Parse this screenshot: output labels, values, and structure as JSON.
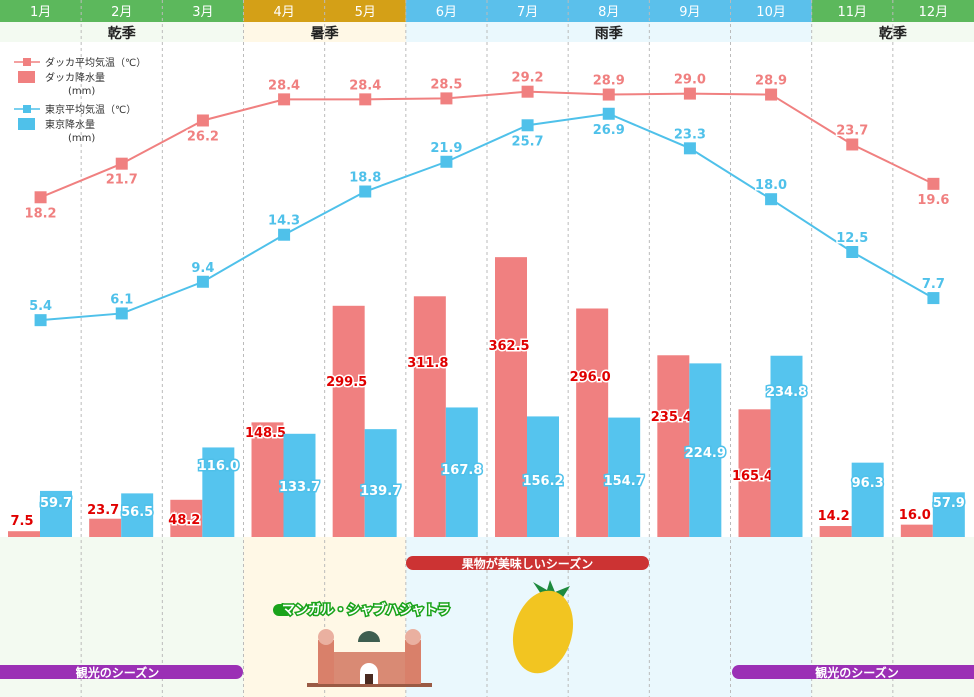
{
  "chart_data": {
    "type": "bar+line",
    "categories": [
      "1月",
      "2月",
      "3月",
      "4月",
      "5月",
      "6月",
      "7月",
      "8月",
      "9月",
      "10月",
      "11月",
      "12月"
    ],
    "seasons": [
      {
        "label": "乾季",
        "months": [
          1,
          2,
          3
        ],
        "color": "#5cb85c",
        "bg": "#f3faf1"
      },
      {
        "label": "暑季",
        "months": [
          4,
          5
        ],
        "color": "#d4a017",
        "bg": "#fff8e6"
      },
      {
        "label": "雨季",
        "months": [
          6,
          7,
          8,
          9,
          10
        ],
        "color": "#5bc0eb",
        "bg": "#eaf8fd"
      },
      {
        "label": "乾季",
        "months": [
          11,
          12
        ],
        "color": "#5cb85c",
        "bg": "#f3faf1"
      }
    ],
    "series": [
      {
        "name": "ダッカ平均気温（℃）",
        "type": "line",
        "color": "#f08080",
        "values": [
          18.2,
          21.7,
          26.2,
          28.4,
          28.4,
          28.5,
          29.2,
          28.9,
          29.0,
          28.9,
          23.7,
          19.6
        ]
      },
      {
        "name": "東京平均気温（℃）",
        "type": "line",
        "color": "#4fc1ea",
        "values": [
          5.4,
          6.1,
          9.4,
          14.3,
          18.8,
          21.9,
          25.7,
          26.9,
          23.3,
          18.0,
          12.5,
          7.7
        ]
      },
      {
        "name": "ダッカ降水量",
        "unit": "(mm)",
        "type": "bar",
        "color": "#f08080",
        "values": [
          7.5,
          23.7,
          48.2,
          148.5,
          299.5,
          311.8,
          362.5,
          296.0,
          235.4,
          165.4,
          14.2,
          16.0
        ]
      },
      {
        "name": "東京降水量",
        "unit": "(mm)",
        "type": "bar",
        "color": "#55c4ee",
        "values": [
          59.7,
          56.5,
          116.0,
          133.7,
          139.7,
          167.8,
          156.2,
          154.7,
          224.9,
          234.8,
          96.3,
          57.9
        ]
      }
    ],
    "annotations": {
      "tourism_label": "観光のシーズン",
      "fruit_label": "果物が美味しいシーズン",
      "festival_label": "マンガル・シャブハジャトラ"
    }
  }
}
